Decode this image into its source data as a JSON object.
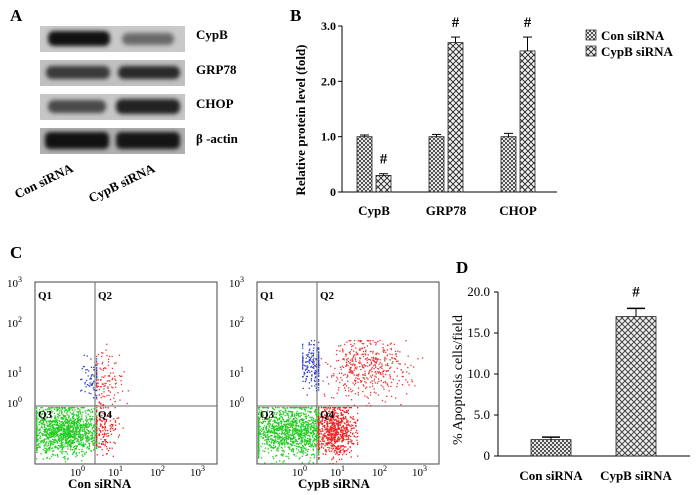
{
  "panels": {
    "A": "A",
    "B": "B",
    "C": "C",
    "D": "D"
  },
  "western_blot": {
    "rows": [
      "CypB",
      "GRP78",
      "CHOP",
      "β -actin"
    ],
    "lanes": [
      "Con siRNA",
      "CypB siRNA"
    ]
  },
  "flow": {
    "plots": [
      {
        "label": "Con siRNA",
        "quadrants": [
          "Q1",
          "Q2",
          "Q3",
          "Q4"
        ]
      },
      {
        "label": "CypB siRNA",
        "quadrants": [
          "Q1",
          "Q2",
          "Q3",
          "Q4"
        ]
      }
    ],
    "y_ticks": [
      "10",
      "10",
      "10",
      "10"
    ],
    "y_exps": [
      "3",
      "2",
      "1",
      "0"
    ],
    "x_ticks": [
      "10",
      "10",
      "10",
      "10"
    ],
    "x_exps": [
      "0",
      "1",
      "2",
      "3"
    ],
    "colors": {
      "q3": "#22cc22",
      "q4": "#ee2222",
      "q2": "#ee3333",
      "q1": "#3344cc"
    }
  },
  "chart_data": [
    {
      "type": "bar",
      "title": "",
      "ylabel": "Relative protein level (fold)",
      "xlabel": "",
      "categories": [
        "CypB",
        "GRP78",
        "CHOP"
      ],
      "ylim": [
        0,
        3.0
      ],
      "y_ticks": [
        "0",
        "1.0",
        "2.0",
        "3.0"
      ],
      "series": [
        {
          "name": "Con siRNA",
          "values": [
            1.0,
            1.0,
            1.0
          ],
          "errors": [
            0.03,
            0.04,
            0.06
          ]
        },
        {
          "name": "CypB siRNA",
          "values": [
            0.3,
            2.7,
            2.55
          ],
          "errors": [
            0.03,
            0.1,
            0.25
          ]
        }
      ],
      "annotations": [
        "#",
        "#",
        "#"
      ],
      "legend": "top-right"
    },
    {
      "type": "bar",
      "title": "",
      "ylabel": "% Apoptosis cells/field",
      "xlabel": "",
      "categories": [
        "Con siRNA",
        "CypB siRNA"
      ],
      "values": [
        2.0,
        17.0
      ],
      "errors": [
        0.3,
        1.0
      ],
      "ylim": [
        0,
        20.0
      ],
      "y_ticks": [
        "0",
        "5.0",
        "10.0",
        "15.0",
        "20.0"
      ],
      "annotations": [
        "",
        "#"
      ]
    }
  ]
}
